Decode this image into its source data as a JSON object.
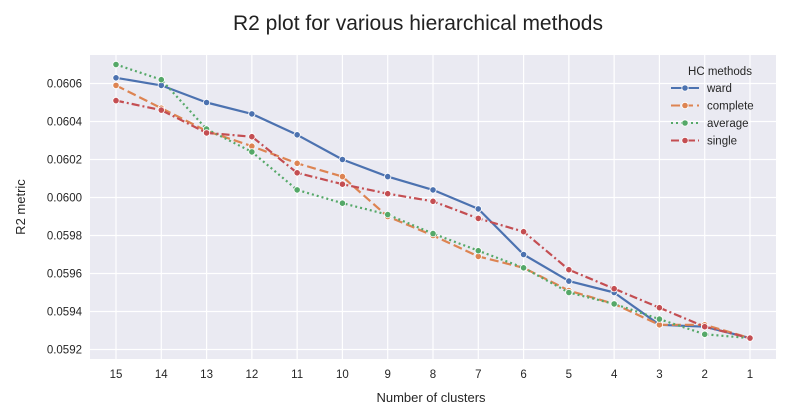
{
  "chart_data": {
    "type": "line",
    "title": "R2 plot for various hierarchical methods",
    "xlabel": "Number of clusters",
    "ylabel": "R2 metric",
    "x": [
      15,
      14,
      13,
      12,
      11,
      10,
      9,
      8,
      7,
      6,
      5,
      4,
      3,
      2,
      1
    ],
    "x_reversed": true,
    "ylim": [
      0.05915,
      0.06075
    ],
    "yticks": [
      "0.0592",
      "0.0594",
      "0.0596",
      "0.0598",
      "0.0600",
      "0.0602",
      "0.0604",
      "0.0606"
    ],
    "grid": true,
    "legend": {
      "title": "HC methods",
      "placement": "top-right"
    },
    "series": [
      {
        "name": "ward",
        "color": "#4c72b0",
        "dash": "solid",
        "values": [
          0.06063,
          0.06059,
          0.0605,
          0.06044,
          0.06033,
          0.0602,
          0.06011,
          0.06004,
          0.05994,
          0.0597,
          0.05956,
          0.0595,
          0.05933,
          0.05932,
          0.05926
        ]
      },
      {
        "name": "complete",
        "color": "#dd8452",
        "dash": "dashed",
        "values": [
          0.06059,
          0.06047,
          0.06035,
          0.06027,
          0.06018,
          0.06011,
          0.0599,
          0.0598,
          0.05969,
          0.05963,
          0.05951,
          0.05944,
          0.05933,
          0.05933,
          0.05926
        ]
      },
      {
        "name": "average",
        "color": "#55a868",
        "dash": "dotted",
        "values": [
          0.0607,
          0.06062,
          0.06036,
          0.06024,
          0.06004,
          0.05997,
          0.05991,
          0.05981,
          0.05972,
          0.05963,
          0.0595,
          0.05944,
          0.05936,
          0.05928,
          0.05926
        ]
      },
      {
        "name": "single",
        "color": "#c44e52",
        "dash": "dashdot",
        "values": [
          0.06051,
          0.06046,
          0.06034,
          0.06032,
          0.06013,
          0.06007,
          0.06002,
          0.05998,
          0.05989,
          0.05982,
          0.05962,
          0.05952,
          0.05942,
          0.05932,
          0.05926
        ]
      }
    ]
  }
}
